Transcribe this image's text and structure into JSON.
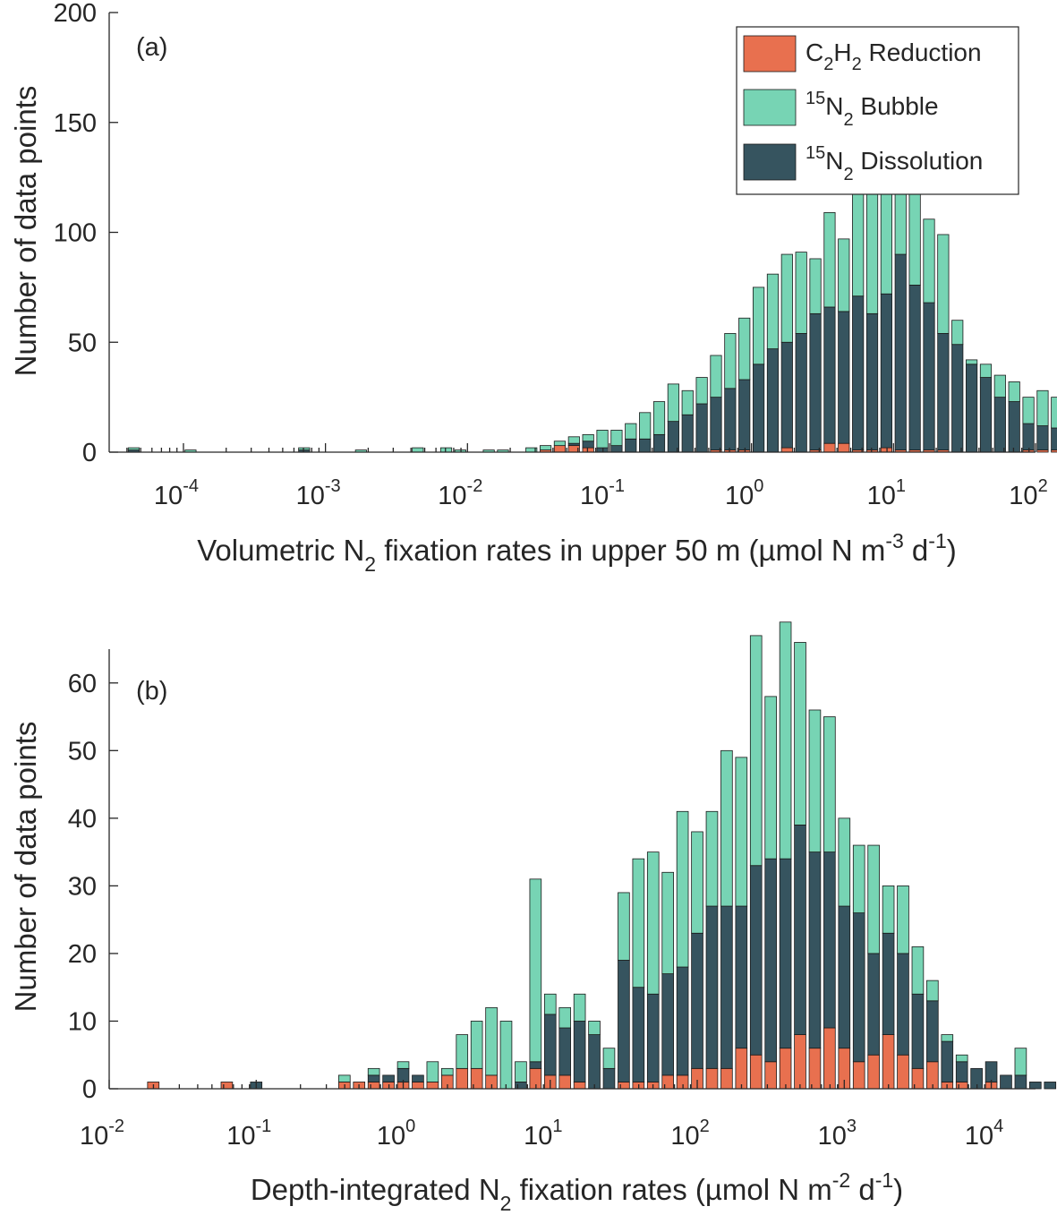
{
  "colors": {
    "c2h2": "#e8704f",
    "bubble": "#77d4b4",
    "dissolution": "#36545f"
  },
  "legend": {
    "c2h2": {
      "base": "C",
      "s1": "2",
      "mid": "H",
      "s2": "2",
      "post": " Reduction"
    },
    "bubble": {
      "sup": "15",
      "base": "N",
      "sub": "2",
      "post": " Bubble"
    },
    "dissolution": {
      "sup": "15",
      "base": "N",
      "sub": "2",
      "post": " Dissolution"
    }
  },
  "chart_data": [
    {
      "type": "bar",
      "panel_label": "(a)",
      "stacked": true,
      "xscale": "log",
      "xlim": [
        3e-05,
        100
      ],
      "ylim": [
        0,
        200
      ],
      "yticks": [
        0,
        50,
        100,
        150,
        200
      ],
      "xticks": [
        {
          "base": "10",
          "exp": "-4"
        },
        {
          "base": "10",
          "exp": "-3"
        },
        {
          "base": "10",
          "exp": "-2"
        },
        {
          "base": "10",
          "exp": "-1"
        },
        {
          "base": "10",
          "exp": "0"
        },
        {
          "base": "10",
          "exp": "1"
        },
        {
          "base": "10",
          "exp": "2"
        }
      ],
      "xtick_values": [
        -4,
        -3,
        -2,
        -1,
        0,
        1,
        2
      ],
      "ylabel": "Number of data points",
      "xlabel": {
        "pre": "Volumetric N",
        "sub": "2",
        "mid": " fixation rates in upper 50 m (µmol N m",
        "sup1": "-3",
        "mid2": " d",
        "sup2": "-1",
        "post": ")"
      },
      "legend_position": "top-right",
      "bin_log10_start": -4.35,
      "bin_log10_width": 0.1,
      "series": [
        {
          "key": "c2h2",
          "values": [
            0,
            0,
            0,
            0,
            0,
            0,
            0,
            0,
            0,
            0,
            0,
            0,
            0,
            0,
            0,
            0,
            0,
            0,
            0,
            0,
            0,
            0,
            0,
            0,
            0,
            0,
            0,
            0,
            0,
            1,
            3,
            3,
            2,
            0,
            0,
            0,
            0,
            0,
            0,
            0,
            0,
            1,
            1,
            1,
            0,
            0,
            2,
            0,
            1,
            4,
            4,
            1,
            1,
            2,
            1,
            1,
            1,
            1,
            0,
            0,
            0,
            0,
            0,
            1,
            1,
            1,
            0,
            1,
            1,
            0,
            0,
            0,
            0,
            1,
            0,
            0,
            0,
            0,
            0,
            0,
            0,
            0,
            0,
            0,
            0,
            0,
            0,
            0
          ]
        },
        {
          "key": "dissolution",
          "values": [
            1,
            0,
            0,
            0,
            0,
            0,
            0,
            0,
            0,
            0,
            0,
            0,
            1,
            0,
            0,
            0,
            0,
            0,
            0,
            0,
            0,
            0,
            0,
            0,
            0,
            0,
            0,
            0,
            0,
            0,
            0,
            1,
            3,
            2,
            3,
            6,
            6,
            8,
            14,
            17,
            22,
            24,
            28,
            32,
            40,
            47,
            48,
            54,
            62,
            62,
            60,
            70,
            62,
            70,
            89,
            75,
            67,
            53,
            49,
            40,
            34,
            25,
            23,
            12,
            11,
            10,
            9,
            7,
            10,
            9,
            9,
            10,
            6,
            4,
            5,
            4,
            2,
            5,
            5,
            3,
            2,
            2,
            2,
            1,
            1,
            0,
            0,
            0
          ]
        },
        {
          "key": "bubble",
          "values": [
            1,
            0,
            0,
            0,
            1,
            0,
            0,
            0,
            0,
            0,
            0,
            0,
            1,
            0,
            0,
            0,
            1,
            0,
            0,
            0,
            2,
            0,
            2,
            1,
            0,
            1,
            1,
            0,
            2,
            2,
            2,
            3,
            3,
            8,
            7,
            7,
            12,
            15,
            17,
            11,
            12,
            19,
            25,
            28,
            35,
            34,
            40,
            37,
            25,
            43,
            33,
            64,
            74,
            60,
            53,
            53,
            38,
            45,
            11,
            2,
            6,
            10,
            9,
            12,
            16,
            14,
            17,
            20,
            10,
            6,
            2,
            1,
            3,
            3,
            1,
            0,
            3,
            0,
            0,
            0,
            1,
            0,
            0,
            0,
            0,
            1,
            0,
            0
          ]
        }
      ]
    },
    {
      "type": "bar",
      "panel_label": "(b)",
      "stacked": true,
      "xscale": "log",
      "xlim": [
        0.01,
        20000
      ],
      "ylim": [
        0,
        65
      ],
      "yticks": [
        0,
        10,
        20,
        30,
        40,
        50,
        60
      ],
      "xticks": [
        {
          "base": "10",
          "exp": "-2"
        },
        {
          "base": "10",
          "exp": "-1"
        },
        {
          "base": "10",
          "exp": "0"
        },
        {
          "base": "10",
          "exp": "1"
        },
        {
          "base": "10",
          "exp": "2"
        },
        {
          "base": "10",
          "exp": "3"
        },
        {
          "base": "10",
          "exp": "4"
        }
      ],
      "xtick_values": [
        -2,
        -1,
        0,
        1,
        2,
        3,
        4
      ],
      "ylabel": "Number of data points",
      "xlabel": {
        "pre": "Depth-integrated N",
        "sub": "2",
        "mid": " fixation rates (µmol N m",
        "sup1": "-2",
        "mid2": " d",
        "sup2": "-1",
        "post": ")"
      },
      "legend_position": "none",
      "bin_log10_start": -1.7,
      "bin_log10_width": 0.1,
      "series": [
        {
          "key": "c2h2",
          "values": [
            1,
            0,
            0,
            0,
            0,
            1,
            0,
            0,
            0,
            0,
            0,
            0,
            0,
            1,
            1,
            1,
            1,
            1,
            1,
            1,
            2,
            3,
            3,
            2,
            0,
            0,
            3,
            2,
            2,
            1,
            0,
            0,
            1,
            1,
            1,
            2,
            2,
            3,
            3,
            3,
            6,
            5,
            4,
            6,
            8,
            6,
            9,
            6,
            4,
            5,
            8,
            5,
            3,
            4,
            1,
            1,
            0,
            1,
            0,
            0,
            0,
            0,
            0,
            0,
            0,
            0,
            0,
            0
          ]
        },
        {
          "key": "dissolution",
          "values": [
            0,
            0,
            0,
            0,
            0,
            0,
            0,
            1,
            0,
            0,
            0,
            0,
            0,
            0,
            0,
            1,
            1,
            2,
            1,
            0,
            0,
            0,
            0,
            0,
            0,
            1,
            1,
            9,
            7,
            9,
            8,
            3,
            18,
            14,
            13,
            15,
            16,
            20,
            24,
            24,
            21,
            28,
            30,
            28,
            31,
            29,
            26,
            21,
            22,
            15,
            15,
            15,
            11,
            9,
            6,
            3,
            3,
            3,
            2,
            2,
            1,
            1,
            1,
            1,
            2,
            2,
            1,
            1
          ]
        },
        {
          "key": "bubble",
          "values": [
            0,
            0,
            0,
            0,
            0,
            0,
            0,
            0,
            0,
            0,
            0,
            0,
            0,
            1,
            0,
            1,
            0,
            1,
            0,
            3,
            1,
            5,
            7,
            10,
            10,
            3,
            27,
            3,
            3,
            4,
            2,
            3,
            10,
            19,
            21,
            15,
            23,
            15,
            14,
            23,
            22,
            34,
            24,
            35,
            27,
            21,
            20,
            13,
            10,
            16,
            7,
            10,
            7,
            3,
            1,
            1,
            0,
            0,
            0,
            4,
            0,
            0,
            0,
            0,
            0,
            0,
            0,
            0
          ]
        }
      ]
    }
  ]
}
